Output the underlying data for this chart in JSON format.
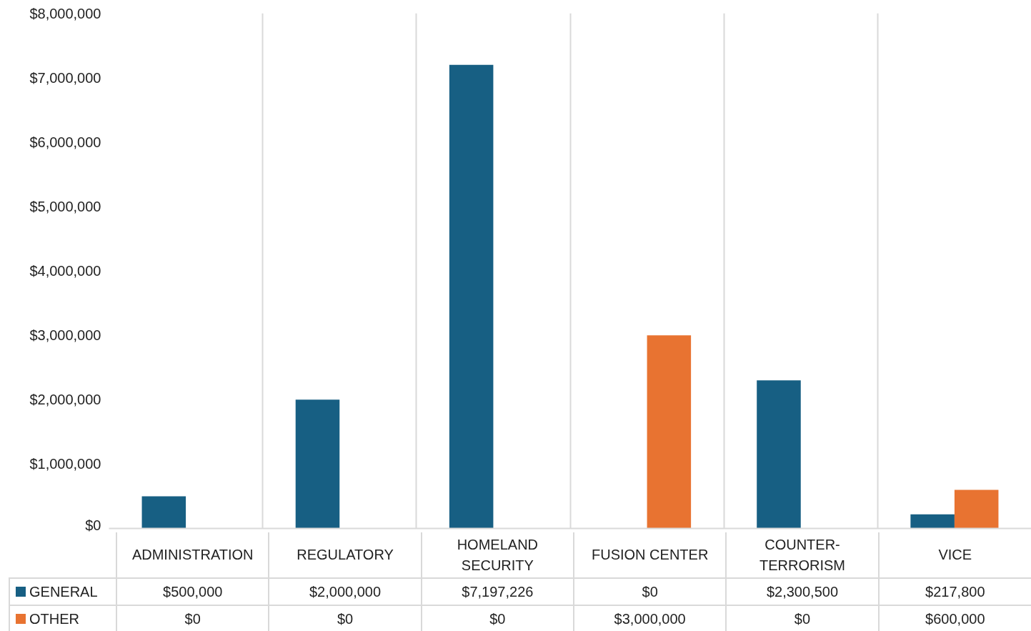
{
  "chart_data": {
    "type": "bar",
    "categories": [
      "ADMINISTRATION",
      "REGULATORY",
      "HOMELAND SECURITY",
      "FUSION CENTER",
      "COUNTER-TERRORISM",
      "VICE"
    ],
    "series": [
      {
        "name": "GENERAL",
        "color": "#175f83",
        "values": [
          500000,
          2000000,
          7197226,
          0,
          2300500,
          217800
        ],
        "value_labels": [
          "$500,000",
          "$2,000,000",
          "$7,197,226",
          "$0",
          "$2,300,500",
          "$217,800"
        ]
      },
      {
        "name": "OTHER",
        "color": "#e87331",
        "values": [
          0,
          0,
          0,
          3000000,
          0,
          600000
        ],
        "value_labels": [
          "$0",
          "$0",
          "$0",
          "$3,000,000",
          "$0",
          "$600,000"
        ]
      }
    ],
    "ylim": [
      0,
      8000000
    ],
    "yticks": [
      {
        "value": 0,
        "label": "$0"
      },
      {
        "value": 1000000,
        "label": "$1,000,000"
      },
      {
        "value": 2000000,
        "label": "$2,000,000"
      },
      {
        "value": 3000000,
        "label": "$3,000,000"
      },
      {
        "value": 4000000,
        "label": "$4,000,000"
      },
      {
        "value": 5000000,
        "label": "$5,000,000"
      },
      {
        "value": 6000000,
        "label": "$6,000,000"
      },
      {
        "value": 7000000,
        "label": "$7,000,000"
      },
      {
        "value": 8000000,
        "label": "$8,000,000"
      }
    ],
    "grid": "x",
    "legend": "bottom"
  }
}
